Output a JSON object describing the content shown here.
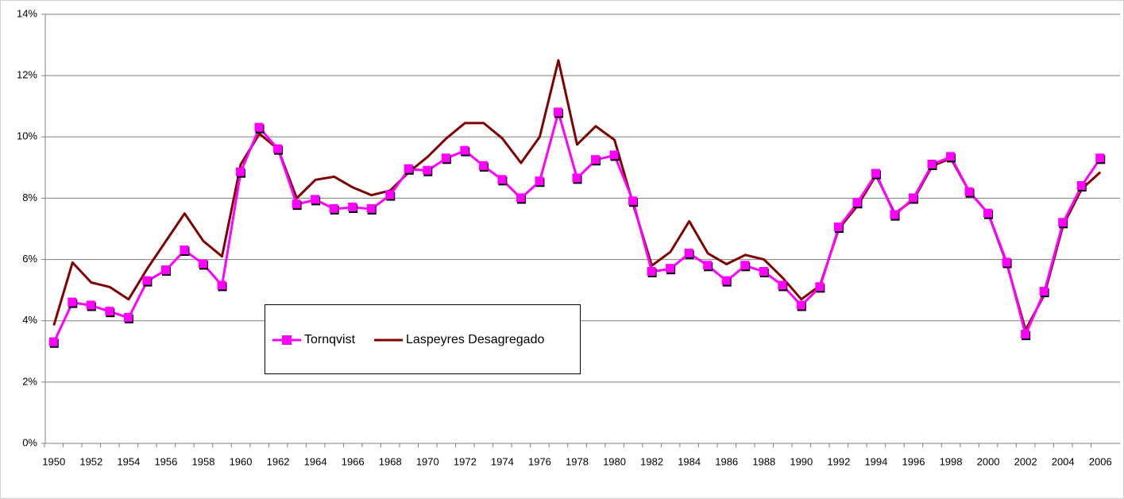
{
  "chart_data": {
    "type": "line",
    "categories": [
      "1950",
      null,
      "1952",
      null,
      "1954",
      null,
      "1956",
      null,
      "1958",
      null,
      "1960",
      null,
      "1962",
      null,
      "1964",
      null,
      "1966",
      null,
      "1968",
      null,
      "1970",
      null,
      "1972",
      null,
      "1974",
      null,
      "1976",
      null,
      "1978",
      null,
      "1980",
      null,
      "1982",
      null,
      "1984",
      null,
      "1986",
      null,
      "1988",
      null,
      "1990",
      null,
      "1992",
      null,
      "1994",
      null,
      "1996",
      null,
      "1998",
      null,
      "2000",
      null,
      "2002",
      null,
      "2004",
      null,
      "2006"
    ],
    "series": [
      {
        "name": "Tornqvist",
        "color": "#ff00ff",
        "marker": "square",
        "values": [
          3.3,
          4.6,
          4.5,
          4.3,
          4.1,
          5.3,
          5.65,
          6.3,
          5.85,
          5.15,
          8.85,
          10.3,
          9.6,
          7.8,
          7.95,
          7.65,
          7.7,
          7.65,
          8.1,
          8.95,
          8.9,
          9.3,
          9.55,
          9.05,
          8.6,
          8.0,
          8.55,
          10.8,
          8.65,
          9.25,
          9.4,
          7.9,
          5.6,
          5.7,
          6.2,
          5.8,
          5.3,
          5.8,
          5.6,
          5.15,
          4.5,
          5.1,
          7.05,
          7.85,
          8.8,
          7.45,
          8.0,
          9.1,
          9.35,
          8.2,
          7.5,
          5.9,
          3.55,
          4.95,
          7.2,
          8.4,
          9.3
        ]
      },
      {
        "name": "Laspeyres Desagregado",
        "color": "#800000",
        "values": [
          3.85,
          5.9,
          5.25,
          5.1,
          4.7,
          5.7,
          6.6,
          7.5,
          6.6,
          6.1,
          9.1,
          10.1,
          9.6,
          8.0,
          8.6,
          8.7,
          8.35,
          8.1,
          8.25,
          8.85,
          9.35,
          9.95,
          10.45,
          10.45,
          9.95,
          9.15,
          10.0,
          12.5,
          9.75,
          10.35,
          9.9,
          7.8,
          5.8,
          6.25,
          7.25,
          6.2,
          5.85,
          6.15,
          6.0,
          5.4,
          4.7,
          5.15,
          7.0,
          7.75,
          8.75,
          7.5,
          7.95,
          9.05,
          9.3,
          8.2,
          7.5,
          5.85,
          3.7,
          4.85,
          7.1,
          8.3,
          8.85
        ]
      }
    ],
    "ylim": [
      0,
      14
    ],
    "yticks": [
      {
        "value": 0,
        "label": "0%"
      },
      {
        "value": 2,
        "label": "2%"
      },
      {
        "value": 4,
        "label": "4%"
      },
      {
        "value": 6,
        "label": "6%"
      },
      {
        "value": 8,
        "label": "8%"
      },
      {
        "value": 10,
        "label": "10%"
      },
      {
        "value": 12,
        "label": "12%"
      },
      {
        "value": 14,
        "label": "14%"
      }
    ],
    "grid": true
  }
}
